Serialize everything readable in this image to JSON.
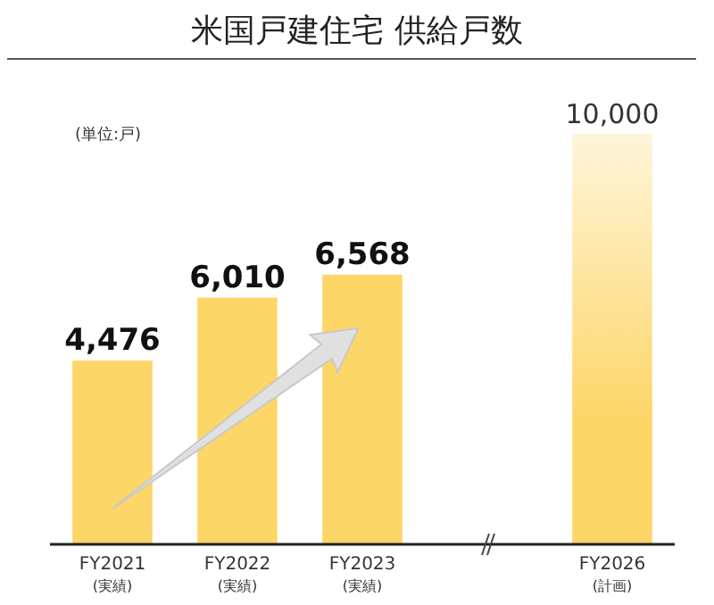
{
  "chart_data": {
    "type": "bar",
    "title": "米国戸建住宅  供給戸数",
    "annotations": [
      "(単位:戸)"
    ],
    "categories": [
      "FY2021\n(実績)",
      "FY2022\n(実績)",
      "FY2023\n(実績)",
      null,
      "FY2026\n(計画)"
    ],
    "values": [
      4476,
      6010,
      6568,
      null,
      10000
    ],
    "color": "#fdd668",
    "value_labels": [
      "4,476",
      "6,010",
      "6,568",
      null,
      "10,000"
    ]
  }
}
